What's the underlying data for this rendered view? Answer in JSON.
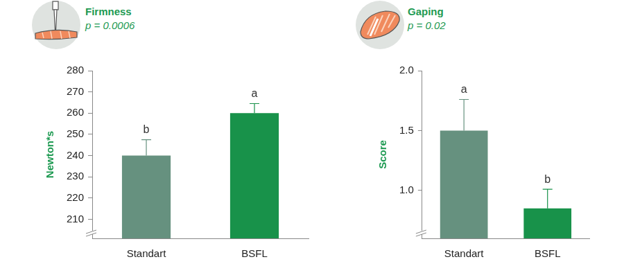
{
  "chart_data": [
    {
      "type": "bar",
      "title": "Firmness",
      "subtitle": "p = 0.0006",
      "y_label": "Newton*s",
      "categories": [
        "Standart",
        "BSFL"
      ],
      "values": [
        240,
        260
      ],
      "errors": [
        7.5,
        4.5
      ],
      "annotations": [
        "b",
        "a"
      ],
      "colors": [
        "#66917f",
        "#18924a"
      ],
      "ylim": [
        201,
        280
      ],
      "yticks": [
        210,
        220,
        230,
        240,
        250,
        260,
        270,
        280
      ],
      "grid": false
    },
    {
      "type": "bar",
      "title": "Gaping",
      "subtitle": "p = 0.02",
      "y_label": "Score",
      "categories": [
        "Standart",
        "BSFL"
      ],
      "values": [
        1.5,
        0.85
      ],
      "errors": [
        0.26,
        0.16
      ],
      "annotations": [
        "a",
        "b"
      ],
      "colors": [
        "#66917f",
        "#18924a"
      ],
      "ylim": [
        0.6,
        2.0
      ],
      "yticks": [
        {
          "value": 1,
          "label": "1.0"
        },
        {
          "value": 1.5,
          "label": "1.5"
        },
        {
          "value": 2,
          "label": "2.0"
        }
      ],
      "grid": false
    }
  ]
}
